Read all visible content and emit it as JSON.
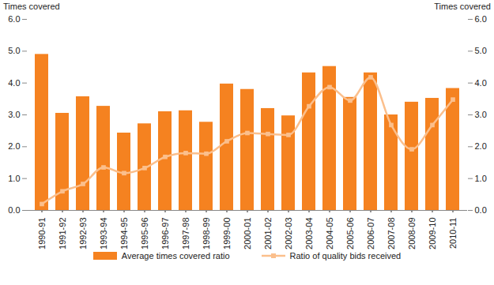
{
  "chart_data": {
    "type": "bar",
    "y_label": "Times covered",
    "y2_label": "Times covered",
    "categories": [
      "1990-91",
      "1991-92",
      "1992-93",
      "1993-94",
      "1994-95",
      "1995-96",
      "1996-97",
      "1997-98",
      "1998-99",
      "1999-00",
      "2000-01",
      "2001-02",
      "2002-03",
      "2003-04",
      "2004-05",
      "2005-06",
      "2006-07",
      "2007-08",
      "2008-09",
      "2009-10",
      "2010-11"
    ],
    "series": [
      {
        "name": "Average times covered ratio",
        "type": "bar",
        "color": "#f58220",
        "values": [
          4.9,
          3.05,
          3.57,
          3.27,
          2.43,
          2.72,
          3.1,
          3.13,
          2.77,
          3.97,
          3.8,
          3.2,
          2.97,
          4.32,
          4.52,
          3.55,
          4.32,
          3.0,
          3.4,
          3.52,
          3.83
        ]
      },
      {
        "name": "Ratio of quality bids received",
        "type": "line",
        "color": "#fbbf8c",
        "marker": "square",
        "axis": "y2",
        "values": [
          0.2,
          0.6,
          0.83,
          1.35,
          1.17,
          1.33,
          1.68,
          1.8,
          1.78,
          2.17,
          2.43,
          2.4,
          2.37,
          3.27,
          3.87,
          3.45,
          4.18,
          2.68,
          1.92,
          2.68,
          3.48
        ]
      }
    ],
    "ylim": [
      0,
      6
    ],
    "yticks": [
      {
        "value": 0,
        "label": "0.0"
      },
      {
        "value": 1,
        "label": "1.0"
      },
      {
        "value": 2,
        "label": "2.0"
      },
      {
        "value": 3,
        "label": "3.0"
      },
      {
        "value": 4,
        "label": "4.0"
      },
      {
        "value": 5,
        "label": "5.0"
      },
      {
        "value": 6,
        "label": "6.0"
      }
    ],
    "y2lim": [
      0,
      6
    ],
    "y2ticks": [
      {
        "value": 0,
        "label": "0.0"
      },
      {
        "value": 1,
        "label": "1.0"
      },
      {
        "value": 2,
        "label": "2.0"
      },
      {
        "value": 3,
        "label": "3.0"
      },
      {
        "value": 4,
        "label": "4.0"
      },
      {
        "value": 5,
        "label": "5.0"
      },
      {
        "value": 6,
        "label": "6.0"
      }
    ],
    "grid": false,
    "legend": "bottom"
  }
}
